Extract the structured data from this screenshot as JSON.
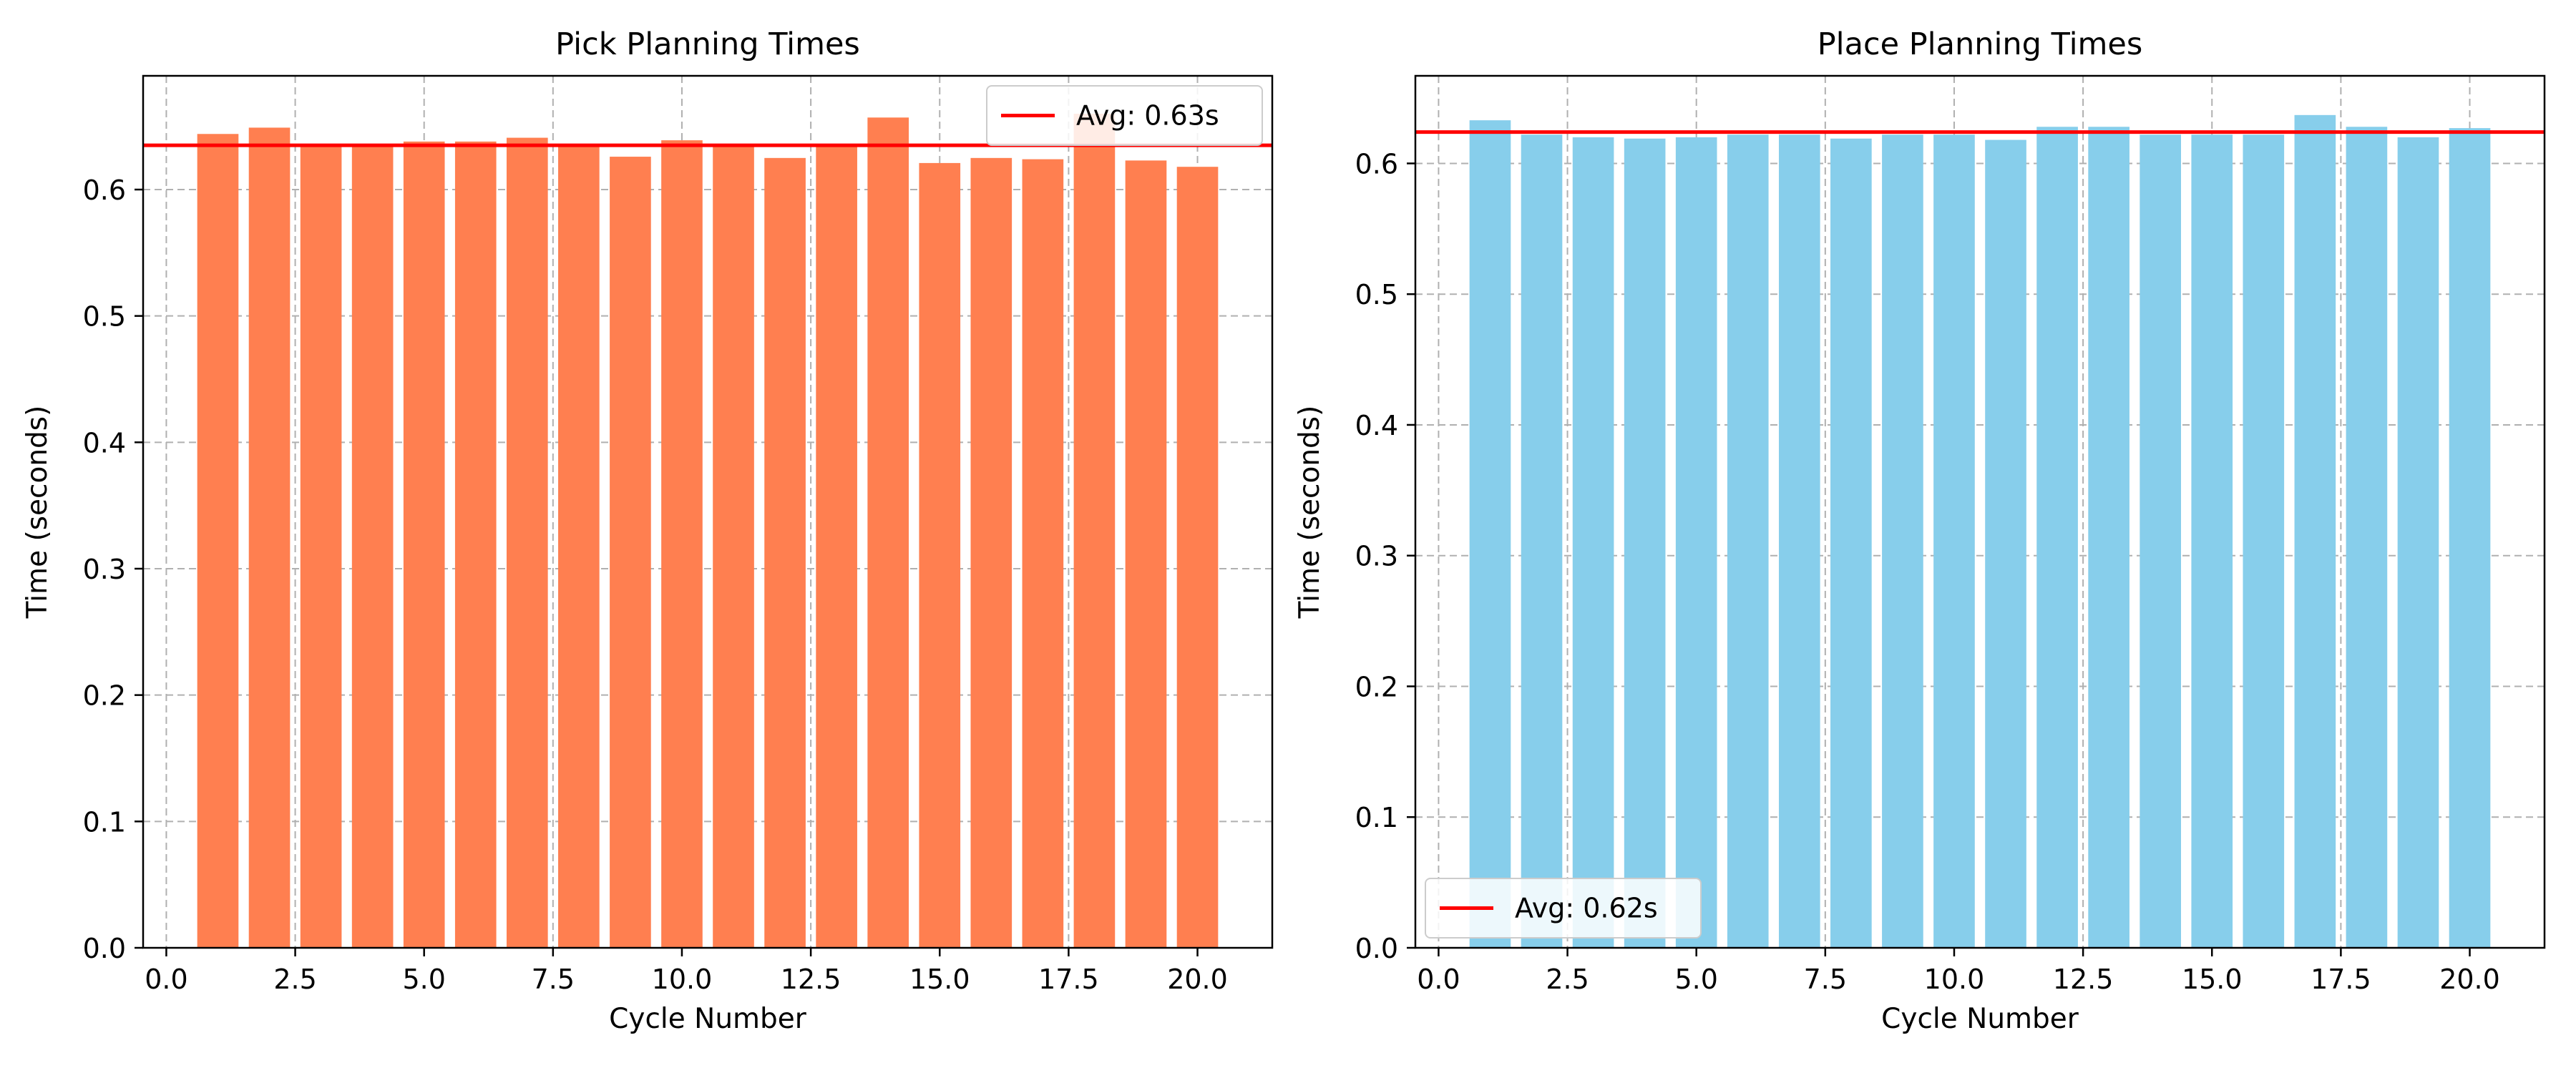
{
  "chart_data": [
    {
      "type": "bar",
      "title": "Pick Planning Times",
      "xlabel": "Cycle Number",
      "ylabel": "Time (seconds)",
      "x": [
        1,
        2,
        3,
        4,
        5,
        6,
        7,
        8,
        9,
        10,
        11,
        12,
        13,
        14,
        15,
        16,
        17,
        18,
        19,
        20
      ],
      "values": [
        0.644,
        0.649,
        0.636,
        0.635,
        0.638,
        0.638,
        0.641,
        0.635,
        0.626,
        0.639,
        0.635,
        0.625,
        0.635,
        0.657,
        0.621,
        0.625,
        0.624,
        0.66,
        0.623,
        0.618
      ],
      "bar_color": "#FF7F50",
      "avg_line": {
        "value": 0.635,
        "label": "Avg: 0.63s",
        "color": "#FF0000"
      },
      "xlim": [
        -0.45,
        21.45
      ],
      "ylim": [
        0.0,
        0.69
      ],
      "xticks": [
        0.0,
        2.5,
        5.0,
        7.5,
        10.0,
        12.5,
        15.0,
        17.5,
        20.0
      ],
      "xtick_labels": [
        "0.0",
        "2.5",
        "5.0",
        "7.5",
        "10.0",
        "12.5",
        "15.0",
        "17.5",
        "20.0"
      ],
      "yticks": [
        0.0,
        0.1,
        0.2,
        0.3,
        0.4,
        0.5,
        0.6
      ],
      "ytick_labels": [
        "0.0",
        "0.1",
        "0.2",
        "0.3",
        "0.4",
        "0.5",
        "0.6"
      ],
      "grid": true,
      "legend_position": "top-right"
    },
    {
      "type": "bar",
      "title": "Place Planning Times",
      "xlabel": "Cycle Number",
      "ylabel": "Time (seconds)",
      "x": [
        1,
        2,
        3,
        4,
        5,
        6,
        7,
        8,
        9,
        10,
        11,
        12,
        13,
        14,
        15,
        16,
        17,
        18,
        19,
        20
      ],
      "values": [
        0.633,
        0.622,
        0.62,
        0.619,
        0.62,
        0.622,
        0.622,
        0.619,
        0.622,
        0.622,
        0.618,
        0.628,
        0.628,
        0.622,
        0.622,
        0.622,
        0.637,
        0.628,
        0.62,
        0.627
      ],
      "bar_color": "#87CEEB",
      "avg_line": {
        "value": 0.624,
        "label": "Avg: 0.62s",
        "color": "#FF0000"
      },
      "xlim": [
        -0.45,
        21.45
      ],
      "ylim": [
        0.0,
        0.667
      ],
      "xticks": [
        0.0,
        2.5,
        5.0,
        7.5,
        10.0,
        12.5,
        15.0,
        17.5,
        20.0
      ],
      "xtick_labels": [
        "0.0",
        "2.5",
        "5.0",
        "7.5",
        "10.0",
        "12.5",
        "15.0",
        "17.5",
        "20.0"
      ],
      "yticks": [
        0.0,
        0.1,
        0.2,
        0.3,
        0.4,
        0.5,
        0.6
      ],
      "ytick_labels": [
        "0.0",
        "0.1",
        "0.2",
        "0.3",
        "0.4",
        "0.5",
        "0.6"
      ],
      "grid": true,
      "legend_position": "bottom-left"
    }
  ]
}
